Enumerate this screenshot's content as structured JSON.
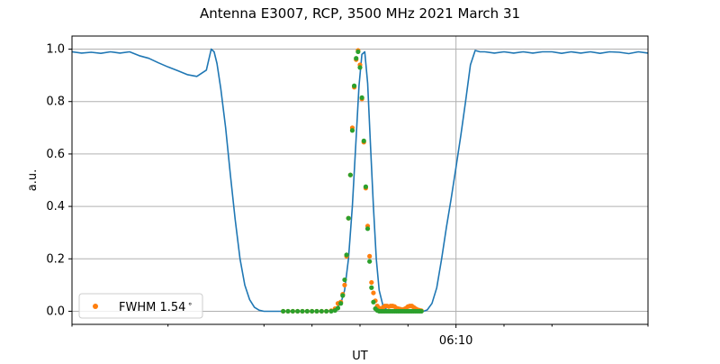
{
  "chart_data": {
    "type": "line",
    "title": "Antenna E3007, RCP, 3500 MHz 2021 March 31",
    "xlabel": "UT",
    "ylabel": "a.u.",
    "x_unit": "minutes",
    "xlim": [
      -40,
      20
    ],
    "ylim": [
      -0.05,
      1.05
    ],
    "y_ticks": [
      0.0,
      0.2,
      0.4,
      0.6,
      0.8,
      1.0
    ],
    "y_tick_labels": [
      "0.0",
      "0.2",
      "0.4",
      "0.6",
      "0.8",
      "1.0"
    ],
    "x_major_ticks": [
      {
        "x": 0,
        "label": "06:10"
      }
    ],
    "x_minor_ticks": [
      -40,
      -30,
      -20,
      -15,
      -10,
      -5,
      5,
      10,
      20
    ],
    "grid": true,
    "legend": {
      "position": "lower left",
      "entries": [
        {
          "label": "FWHM 1.54$^\\circ$",
          "label_display": "FWHM 1.54",
          "label_sup": "∘"
        }
      ]
    },
    "colors": {
      "line": "#1f77b4",
      "scatter_a": "#ff7f0e",
      "scatter_b": "#2ca02c",
      "grid": "#b0b0b0"
    },
    "series": [
      {
        "kind": "line",
        "x": [
          -40.0,
          -39.0,
          -38.0,
          -37.0,
          -36.0,
          -35.0,
          -34.0,
          -33.0,
          -32.0,
          -31.0,
          -30.0,
          -29.0,
          -28.0,
          -27.0,
          -26.0,
          -25.5,
          -25.2,
          -24.9,
          -24.5,
          -24.0,
          -23.5,
          -23.0,
          -22.5,
          -22.0,
          -21.5,
          -21.0,
          -20.5,
          -20.0,
          -19.5,
          -19.0,
          -18.0,
          -17.0,
          -16.0,
          -15.0,
          -14.0,
          -13.0,
          -12.5,
          -12.0,
          -11.6,
          -11.2,
          -10.8,
          -10.4,
          -10.1,
          -9.8,
          -9.5,
          -9.2,
          -8.9,
          -8.6,
          -8.3,
          -8.0,
          -7.6,
          -7.2,
          -6.8,
          -6.4,
          -6.0,
          -5.0,
          -4.0,
          -3.4,
          -3.0,
          -2.5,
          -2.0,
          -1.5,
          -1.0,
          -0.5,
          0.0,
          0.5,
          1.0,
          1.5,
          2.0,
          2.5,
          3.0,
          4.0,
          5.0,
          6.0,
          7.0,
          8.0,
          9.0,
          10.0,
          11.0,
          12.0,
          13.0,
          14.0,
          15.0,
          16.0,
          17.0,
          18.0,
          19.0,
          20.0
        ],
        "y": [
          0.99,
          0.985,
          0.988,
          0.984,
          0.99,
          0.985,
          0.99,
          0.975,
          0.965,
          0.948,
          0.932,
          0.918,
          0.903,
          0.896,
          0.92,
          1.0,
          0.99,
          0.945,
          0.85,
          0.7,
          0.52,
          0.35,
          0.2,
          0.1,
          0.045,
          0.015,
          0.004,
          0.0,
          0.0,
          0.0,
          0.0,
          0.0,
          0.0,
          0.0,
          0.0,
          0.002,
          0.01,
          0.03,
          0.08,
          0.2,
          0.4,
          0.66,
          0.86,
          0.98,
          0.99,
          0.87,
          0.63,
          0.4,
          0.2,
          0.08,
          0.02,
          0.005,
          0.002,
          0.001,
          0.0,
          0.0,
          0.0,
          0.0,
          0.005,
          0.03,
          0.09,
          0.2,
          0.32,
          0.43,
          0.55,
          0.67,
          0.8,
          0.94,
          0.995,
          0.99,
          0.99,
          0.985,
          0.99,
          0.985,
          0.99,
          0.985,
          0.99,
          0.99,
          0.984,
          0.99,
          0.985,
          0.99,
          0.984,
          0.99,
          0.988,
          0.983,
          0.99,
          0.985
        ]
      },
      {
        "kind": "scatter",
        "x": [
          -18.0,
          -17.5,
          -17.0,
          -16.5,
          -16.0,
          -15.5,
          -15.0,
          -14.5,
          -14.0,
          -13.5,
          -13.0,
          -12.6,
          -12.3,
          -12.0,
          -11.8,
          -11.6,
          -11.4,
          -11.2,
          -11.0,
          -10.8,
          -10.6,
          -10.4,
          -10.2,
          -10.0,
          -9.8,
          -9.6,
          -9.4,
          -9.2,
          -9.0,
          -8.8,
          -8.6,
          -8.4,
          -8.2,
          -8.0,
          -7.8,
          -7.6,
          -7.4,
          -7.2,
          -7.0,
          -6.8,
          -6.6,
          -6.4,
          -6.2,
          -6.0,
          -5.8,
          -5.6,
          -5.4,
          -5.2,
          -5.0,
          -4.8,
          -4.6,
          -4.4,
          -4.2,
          -4.0,
          -3.8,
          -3.6
        ],
        "y": [
          0.0,
          0.0,
          0.0,
          0.0,
          0.0,
          0.0,
          0.0,
          0.0,
          0.0,
          0.0,
          0.002,
          0.01,
          0.03,
          0.035,
          0.065,
          0.1,
          0.21,
          0.355,
          0.52,
          0.7,
          0.855,
          0.96,
          0.995,
          0.94,
          0.81,
          0.645,
          0.47,
          0.325,
          0.21,
          0.11,
          0.07,
          0.04,
          0.02,
          0.012,
          0.008,
          0.015,
          0.02,
          0.02,
          0.018,
          0.02,
          0.02,
          0.018,
          0.012,
          0.01,
          0.008,
          0.006,
          0.008,
          0.012,
          0.018,
          0.02,
          0.02,
          0.015,
          0.01,
          0.006,
          0.004,
          0.002
        ]
      },
      {
        "kind": "scatter",
        "x": [
          -18.0,
          -17.5,
          -17.0,
          -16.5,
          -16.0,
          -15.5,
          -15.0,
          -14.5,
          -14.0,
          -13.5,
          -13.0,
          -12.6,
          -12.3,
          -12.0,
          -11.8,
          -11.6,
          -11.4,
          -11.2,
          -11.0,
          -10.8,
          -10.6,
          -10.4,
          -10.2,
          -10.0,
          -9.8,
          -9.6,
          -9.4,
          -9.2,
          -9.0,
          -8.8,
          -8.6,
          -8.4,
          -8.2,
          -8.0,
          -7.8,
          -7.6,
          -7.4,
          -7.2,
          -7.0,
          -6.8,
          -6.6,
          -6.4,
          -6.2,
          -6.0,
          -5.8,
          -5.6,
          -5.4,
          -5.2,
          -5.0,
          -4.8,
          -4.6,
          -4.4,
          -4.2,
          -4.0,
          -3.8,
          -3.6
        ],
        "y": [
          0.0,
          0.0,
          0.0,
          0.0,
          0.0,
          0.0,
          0.0,
          0.0,
          0.0,
          0.0,
          0.0,
          0.003,
          0.012,
          0.03,
          0.06,
          0.12,
          0.215,
          0.355,
          0.52,
          0.69,
          0.86,
          0.965,
          0.99,
          0.93,
          0.815,
          0.65,
          0.475,
          0.315,
          0.19,
          0.09,
          0.035,
          0.01,
          0.003,
          0.0,
          0.0,
          0.0,
          0.0,
          0.0,
          0.0,
          0.0,
          0.0,
          0.0,
          0.0,
          0.0,
          0.0,
          0.0,
          0.0,
          0.0,
          0.0,
          0.0,
          0.0,
          0.0,
          0.0,
          0.0,
          0.0,
          0.0
        ]
      }
    ]
  }
}
